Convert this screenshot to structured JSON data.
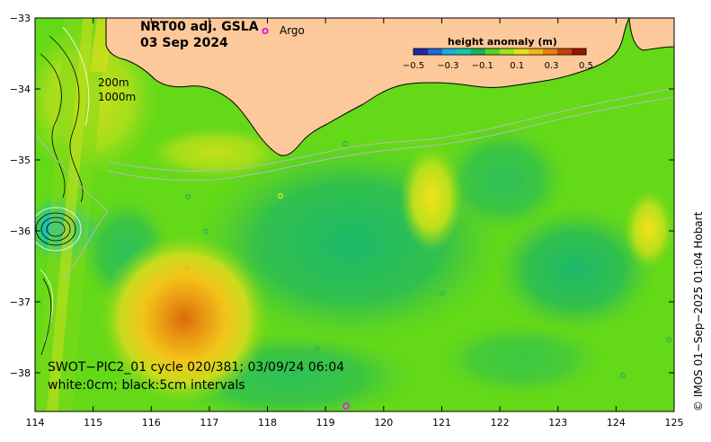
{
  "title": {
    "product": "NRT00 adj. GSLA",
    "date": "03 Sep 2024"
  },
  "legend": {
    "argo_marker": "o",
    "argo_label": "Argo"
  },
  "colorbar": {
    "title": "height anomaly (m)",
    "ticks": [
      "−0.5",
      "−0.3",
      "−0.1",
      "0.1",
      "0.3",
      "0.5"
    ],
    "colors": [
      "#1e2b9e",
      "#1f68d6",
      "#17aee0",
      "#12c8a8",
      "#18b15c",
      "#57d61c",
      "#9fe21a",
      "#e4e21a",
      "#f2b71a",
      "#e77e10",
      "#c4420c",
      "#9a1307"
    ]
  },
  "depth_contours": {
    "line1": "200m",
    "line2": "1000m"
  },
  "swot": {
    "line1": "SWOT−PIC2_01 cycle 020/381; 03/09/24 06:04",
    "line2": "white:0cm; black:5cm intervals"
  },
  "credit": "© IMOS 01−Sep−2025 01:04 Hobart",
  "axes": {
    "x_ticks": [
      "114",
      "115",
      "116",
      "117",
      "118",
      "119",
      "120",
      "121",
      "122",
      "123",
      "124",
      "125"
    ],
    "y_ticks": [
      "−33",
      "−34",
      "−35",
      "−36",
      "−37",
      "−38"
    ]
  },
  "colors": {
    "land": "#fdc99a",
    "sea_base": "#63d918",
    "argo": "#e020e0"
  }
}
